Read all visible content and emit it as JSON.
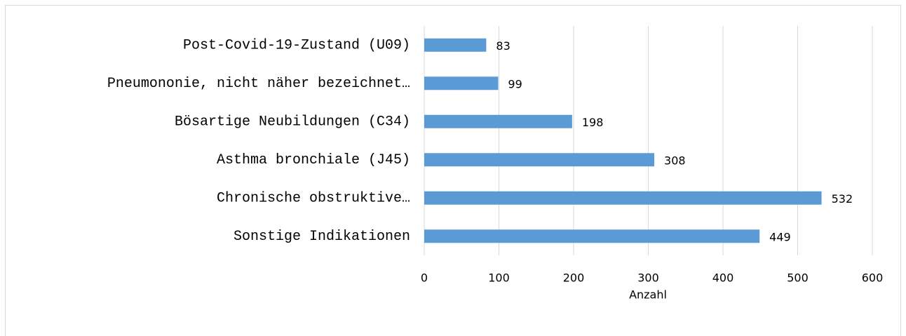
{
  "chart_data": {
    "type": "bar",
    "orientation": "horizontal",
    "categories": [
      "Post-Covid-19-Zustand (U09)",
      "Pneumononie, nicht näher bezeichnet…",
      "Bösartige Neubildungen (C34)",
      "Asthma bronchiale (J45)",
      "Chronische obstruktive…",
      "Sonstige Indikationen"
    ],
    "values": [
      83,
      99,
      198,
      308,
      532,
      449
    ],
    "color": "#5b9bd5",
    "xlabel": "Anzahl",
    "xlim": [
      0,
      600
    ],
    "xticks": [
      0,
      100,
      200,
      300,
      400,
      500,
      600
    ],
    "grid": true
  }
}
